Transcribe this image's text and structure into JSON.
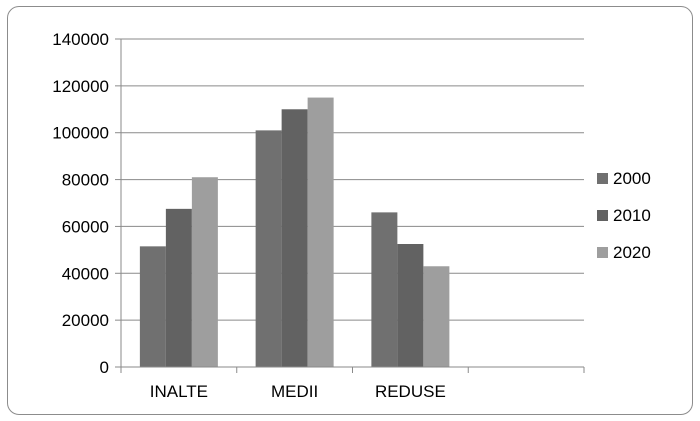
{
  "chart_data": {
    "type": "bar",
    "categories": [
      "INALTE",
      "MEDII",
      "REDUSE",
      ""
    ],
    "series": [
      {
        "name": "2000",
        "values": [
          51500,
          101000,
          66000,
          null
        ],
        "color": "#707070"
      },
      {
        "name": "2010",
        "values": [
          67500,
          110000,
          52500,
          null
        ],
        "color": "#626262"
      },
      {
        "name": "2020",
        "values": [
          81000,
          115000,
          43000,
          null
        ],
        "color": "#9e9e9e"
      }
    ],
    "ylim": [
      0,
      140000
    ],
    "yticks": [
      0,
      20000,
      40000,
      60000,
      80000,
      100000,
      120000,
      140000
    ],
    "grid": true,
    "legend_position": "right",
    "title": "",
    "xlabel": "",
    "ylabel": ""
  }
}
